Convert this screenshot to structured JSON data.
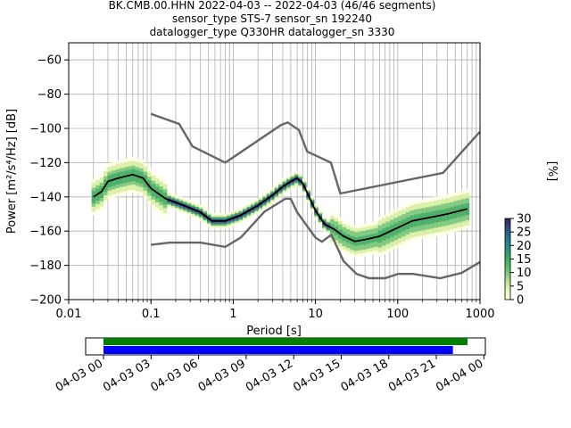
{
  "figure": {
    "title_lines": [
      "BK.CMB.00.HHN   2022-04-03 -- 2022-04-03  (46/46 segments)",
      "sensor_type STS-7 sensor_sn 192240",
      "datalogger_type Q330HR datalogger_sn 3330"
    ]
  },
  "chart_data": {
    "type": "heatmap",
    "xlabel": "Period [s]",
    "ylabel": "Power [m²/s⁴/Hz] [dB]",
    "xscale": "log",
    "xlim": [
      0.01,
      1000
    ],
    "ylim": [
      -200,
      -50
    ],
    "x_ticks": [
      0.01,
      0.1,
      1,
      10,
      100,
      1000
    ],
    "x_tick_labels": [
      "0.01",
      "0.1",
      "1",
      "10",
      "100",
      "1000"
    ],
    "y_ticks": [
      -60,
      -80,
      -100,
      -120,
      -140,
      -160,
      -180,
      -200
    ],
    "y_tick_labels": [
      "−60",
      "−80",
      "−100",
      "−120",
      "−140",
      "−160",
      "−180",
      "−200"
    ],
    "grid": true,
    "colorbar": {
      "label": "[%]",
      "range": [
        0,
        30
      ],
      "ticks": [
        0,
        5,
        10,
        15,
        20,
        25,
        30
      ],
      "colors": [
        "#ffffe5",
        "#d9f0a3",
        "#78c679",
        "#41ab5d",
        "#238b8e",
        "#2c5f8a",
        "#3b1f63"
      ]
    },
    "series": [
      {
        "role": "mean",
        "color": "#000000",
        "x": [
          0.02,
          0.025,
          0.03,
          0.04,
          0.06,
          0.08,
          0.1,
          0.15,
          0.25,
          0.4,
          0.55,
          0.8,
          1.2,
          2,
          3,
          4,
          5,
          6,
          7,
          8,
          10,
          13,
          17,
          22,
          30,
          40,
          60,
          100,
          150,
          250,
          400,
          700
        ],
        "y": [
          -140,
          -137,
          -131,
          -129,
          -127,
          -129,
          -135,
          -141,
          -145,
          -149,
          -154,
          -154,
          -151,
          -145,
          -139,
          -134,
          -131,
          -129,
          -132,
          -138,
          -148,
          -156,
          -159,
          -163,
          -166,
          -165,
          -163,
          -158,
          -154,
          -152,
          -150,
          -147
        ]
      },
      {
        "role": "high_noise_model",
        "color": "#666666",
        "x": [
          0.1,
          0.22,
          0.32,
          0.8,
          3.8,
          4.6,
          6.3,
          7.9,
          15.4,
          20,
          354.8,
          10000
        ],
        "y": [
          -91.5,
          -97.4,
          -110.5,
          -120,
          -98,
          -96.5,
          -101,
          -113.5,
          -120,
          -138,
          -126,
          -48.5
        ]
      },
      {
        "role": "low_noise_model",
        "color": "#666666",
        "x": [
          0.1,
          0.17,
          0.4,
          0.8,
          1.24,
          2.4,
          4.3,
          5,
          6,
          10,
          12,
          15.6,
          21.9,
          31.6,
          45,
          70,
          101,
          154,
          328,
          600,
          1000
        ],
        "y": [
          -168,
          -166.7,
          -166.7,
          -169.2,
          -163.7,
          -148.6,
          -141.1,
          -141.1,
          -149,
          -163.8,
          -166.2,
          -162.1,
          -177.5,
          -185,
          -187.5,
          -187.5,
          -185,
          -185,
          -187.5,
          -184.4,
          -178
        ]
      }
    ]
  },
  "timeline": {
    "tick_labels": [
      "04-03 00",
      "04-03 03",
      "04-03 06",
      "04-03 09",
      "04-03 12",
      "04-03 15",
      "04-03 18",
      "04-03 21",
      "04-04 00"
    ],
    "data_coverage_fraction": 0.98,
    "psd_coverage_fraction": 0.96,
    "data_color": "#008000",
    "psd_color": "#0000ff"
  }
}
